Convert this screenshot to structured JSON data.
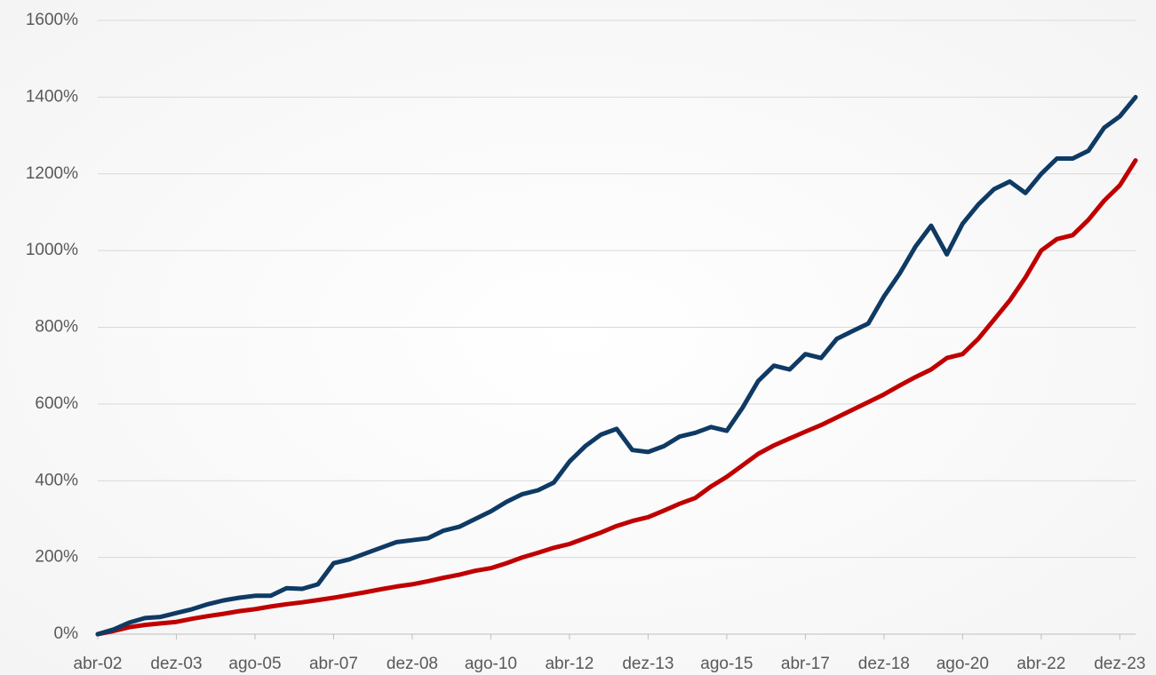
{
  "chart_data": {
    "type": "line",
    "categories": [
      "abr-02",
      null,
      null,
      null,
      null,
      "dez-03",
      null,
      null,
      null,
      null,
      "ago-05",
      null,
      null,
      null,
      null,
      "abr-07",
      null,
      null,
      null,
      null,
      "dez-08",
      null,
      null,
      null,
      null,
      "ago-10",
      null,
      null,
      null,
      null,
      "abr-12",
      null,
      null,
      null,
      null,
      "dez-13",
      null,
      null,
      null,
      null,
      "ago-15",
      null,
      null,
      null,
      null,
      "abr-17",
      null,
      null,
      null,
      null,
      "dez-18",
      null,
      null,
      null,
      null,
      "ago-20",
      null,
      null,
      null,
      null,
      "abr-22",
      null,
      null,
      null,
      null,
      "dez-23",
      null
    ],
    "series": [
      {
        "color": "#0e3a64",
        "values": [
          0,
          12,
          30,
          42,
          45,
          55,
          65,
          78,
          88,
          95,
          100,
          100,
          120,
          118,
          130,
          185,
          195,
          210,
          225,
          240,
          245,
          250,
          270,
          280,
          300,
          320,
          345,
          365,
          375,
          395,
          450,
          490,
          520,
          535,
          480,
          475,
          490,
          515,
          525,
          540,
          530,
          590,
          660,
          700,
          690,
          730,
          720,
          770,
          790,
          810,
          880,
          940,
          1010,
          1065,
          990,
          1070,
          1120,
          1160,
          1180,
          1150,
          1200,
          1240,
          1240,
          1260,
          1320,
          1350,
          1400
        ]
      },
      {
        "color": "#c00000",
        "values": [
          0,
          8,
          18,
          24,
          28,
          32,
          40,
          47,
          53,
          60,
          65,
          72,
          78,
          83,
          89,
          95,
          102,
          109,
          117,
          124,
          130,
          138,
          147,
          155,
          165,
          172,
          185,
          200,
          212,
          225,
          235,
          250,
          265,
          282,
          295,
          305,
          322,
          340,
          355,
          385,
          410,
          440,
          470,
          492,
          510,
          528,
          545,
          565,
          585,
          605,
          625,
          648,
          670,
          690,
          720,
          730,
          770,
          820,
          870,
          930,
          1000,
          1030,
          1040,
          1080,
          1130,
          1170,
          1235
        ]
      }
    ],
    "ylim": [
      0,
      1600
    ],
    "yticks": [
      {
        "value": 0,
        "label": "0%"
      },
      {
        "value": 200,
        "label": "200%"
      },
      {
        "value": 400,
        "label": "400%"
      },
      {
        "value": 600,
        "label": "600%"
      },
      {
        "value": 800,
        "label": "800%"
      },
      {
        "value": 1000,
        "label": "1000%"
      },
      {
        "value": 1200,
        "label": "1200%"
      },
      {
        "value": 1400,
        "label": "1400%"
      },
      {
        "value": 1600,
        "label": "1600%"
      }
    ],
    "grid": true
  }
}
